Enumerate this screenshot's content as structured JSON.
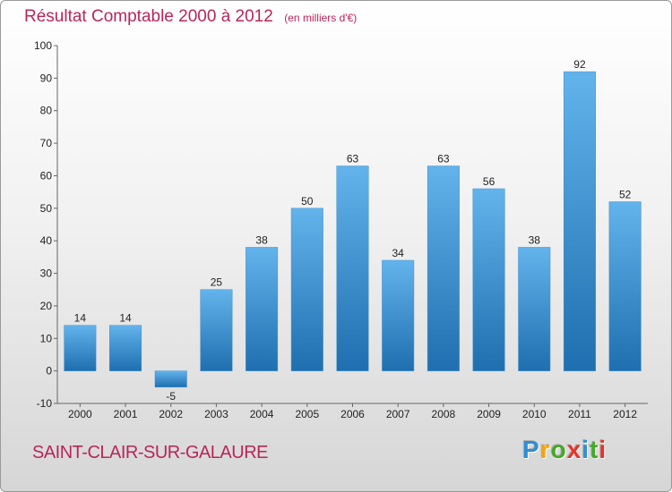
{
  "header": {
    "title": "Résultat Comptable 2000 à 2012",
    "subtitle": "(en milliers d'€)"
  },
  "footer": {
    "place": "SAINT-CLAIR-SUR-GALAURE",
    "logo": {
      "letters": [
        "P",
        "r",
        "o",
        "x",
        "i",
        "t",
        "i"
      ],
      "colors": [
        "#2e8fd6",
        "#f7a30a",
        "#43a82b",
        "#e6332a",
        "#2e8fd6",
        "#43a82b",
        "#e6332a"
      ]
    }
  },
  "colors": {
    "bar_top": "#63b3ec",
    "bar_bottom": "#1f6fb0",
    "text": "#222222",
    "accent": "#b8265a"
  },
  "chart_data": {
    "type": "bar",
    "categories": [
      "2000",
      "2001",
      "2002",
      "2003",
      "2004",
      "2005",
      "2006",
      "2007",
      "2008",
      "2009",
      "2010",
      "2011",
      "2012"
    ],
    "values": [
      14,
      14,
      -5,
      25,
      38,
      50,
      63,
      34,
      63,
      56,
      38,
      92,
      52
    ],
    "ylim": [
      -10,
      100
    ],
    "yticks": [
      -10,
      0,
      10,
      20,
      30,
      40,
      50,
      60,
      70,
      80,
      90,
      100
    ],
    "grid": false,
    "legend": "none"
  }
}
